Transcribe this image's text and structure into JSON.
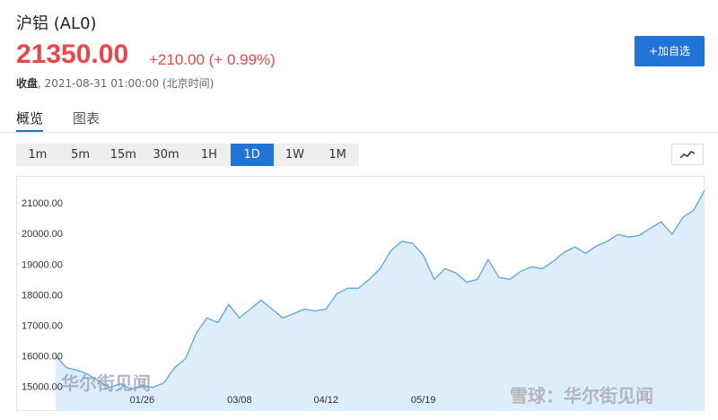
{
  "header": {
    "name": "沪铝  (AL0)",
    "price": "21350.00",
    "change": "+210.00 (+ 0.99%)",
    "close_label": "收盘",
    "timestamp": ", 2021-08-31 01:00:00 (北京时间)",
    "add_button": "+加自选"
  },
  "tabs": [
    "概览",
    "图表"
  ],
  "periods": [
    "1m",
    "5m",
    "15m",
    "30m",
    "1H",
    "1D",
    "1W",
    "1M"
  ],
  "active_period": 5,
  "watermarks": [
    "华尔街见闻",
    "雪球：华尔街见闻"
  ],
  "chart_data": {
    "type": "area",
    "color": "#5aa6e0",
    "fill": "#deedfb",
    "categories": [
      null,
      null,
      null,
      null,
      null,
      null,
      null,
      null,
      "01/26",
      null,
      null,
      null,
      null,
      null,
      null,
      null,
      null,
      "03/08",
      null,
      null,
      null,
      null,
      null,
      null,
      null,
      "04/12",
      null,
      null,
      null,
      null,
      null,
      null,
      null,
      null,
      "05/19",
      null,
      null,
      null,
      null,
      null,
      null,
      null,
      null,
      null,
      null,
      null,
      null,
      null,
      null,
      null,
      null,
      null,
      null,
      null,
      null,
      null,
      null,
      null,
      null,
      null,
      null
    ],
    "values": [
      16000,
      15620,
      15530,
      15400,
      15180,
      14970,
      15090,
      14910,
      15030,
      14970,
      15120,
      15620,
      15910,
      16740,
      17240,
      17090,
      17680,
      17240,
      17530,
      17820,
      17530,
      17240,
      17380,
      17530,
      17470,
      17530,
      18030,
      18210,
      18210,
      18500,
      18850,
      19440,
      19740,
      19680,
      19290,
      18500,
      18850,
      18710,
      18410,
      18500,
      19150,
      18560,
      18500,
      18760,
      18910,
      18850,
      19090,
      19380,
      19560,
      19350,
      19590,
      19740,
      19970,
      19880,
      19940,
      20180,
      20380,
      19970,
      20530,
      20760,
      21410
    ],
    "ylim": [
      14200,
      21880
    ],
    "yticks": [
      {
        "value": 15000,
        "label": "15000.00"
      },
      {
        "value": 16000,
        "label": "16000.00"
      },
      {
        "value": 17000,
        "label": "17000.00"
      },
      {
        "value": 18000,
        "label": "18000.00"
      },
      {
        "value": 19000,
        "label": "19000.00"
      },
      {
        "value": 20000,
        "label": "20000.00"
      },
      {
        "value": 21000,
        "label": "21000.00"
      }
    ]
  }
}
